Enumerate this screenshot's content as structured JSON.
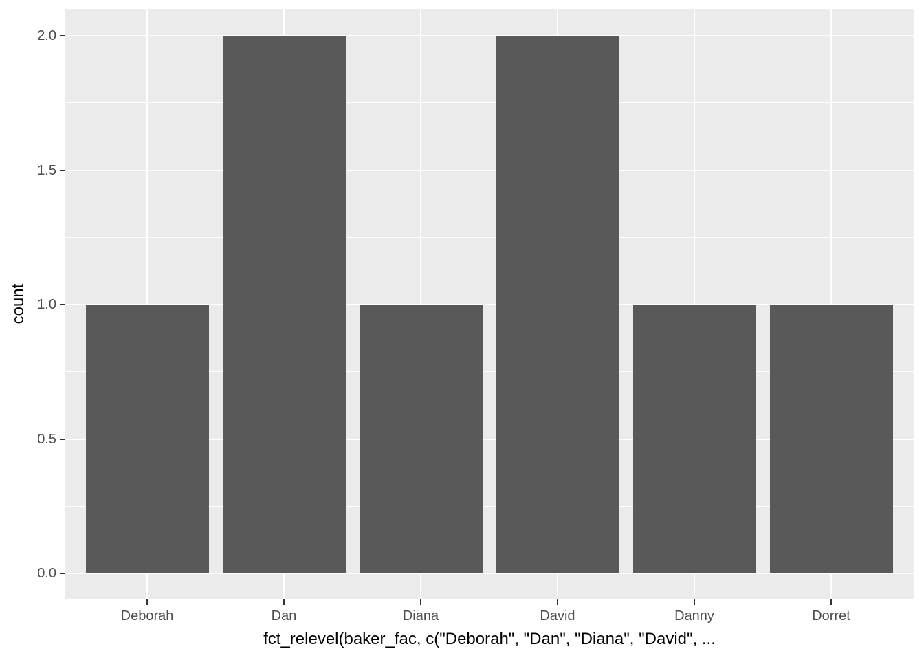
{
  "chart_data": {
    "type": "bar",
    "categories": [
      "Deborah",
      "Dan",
      "Diana",
      "David",
      "Danny",
      "Dorret"
    ],
    "values": [
      1,
      2,
      1,
      2,
      1,
      1
    ],
    "title": "",
    "xlabel": "fct_relevel(baker_fac, c(\"Deborah\", \"Dan\", \"Diana\", \"David\", ...",
    "ylabel": "count",
    "ylim": [
      0,
      2
    ],
    "y_major_ticks": [
      0.0,
      0.5,
      1.0,
      1.5,
      2.0
    ],
    "y_tick_labels": [
      "0.0",
      "0.5",
      "1.0",
      "1.5",
      "2.0"
    ],
    "y_minor_ticks": [
      0.25,
      0.75,
      1.25,
      1.75
    ],
    "grid": "major-and-minor-horizontal, major-vertical",
    "legend_position": "none",
    "colors": {
      "bar_fill": "#595959",
      "panel_background": "#EBEBEB",
      "gridline": "#FFFFFF",
      "axis_text": "#4D4D4D",
      "axis_title": "#000000",
      "tick_mark": "#333333",
      "figure_background": "#FFFFFF"
    }
  }
}
